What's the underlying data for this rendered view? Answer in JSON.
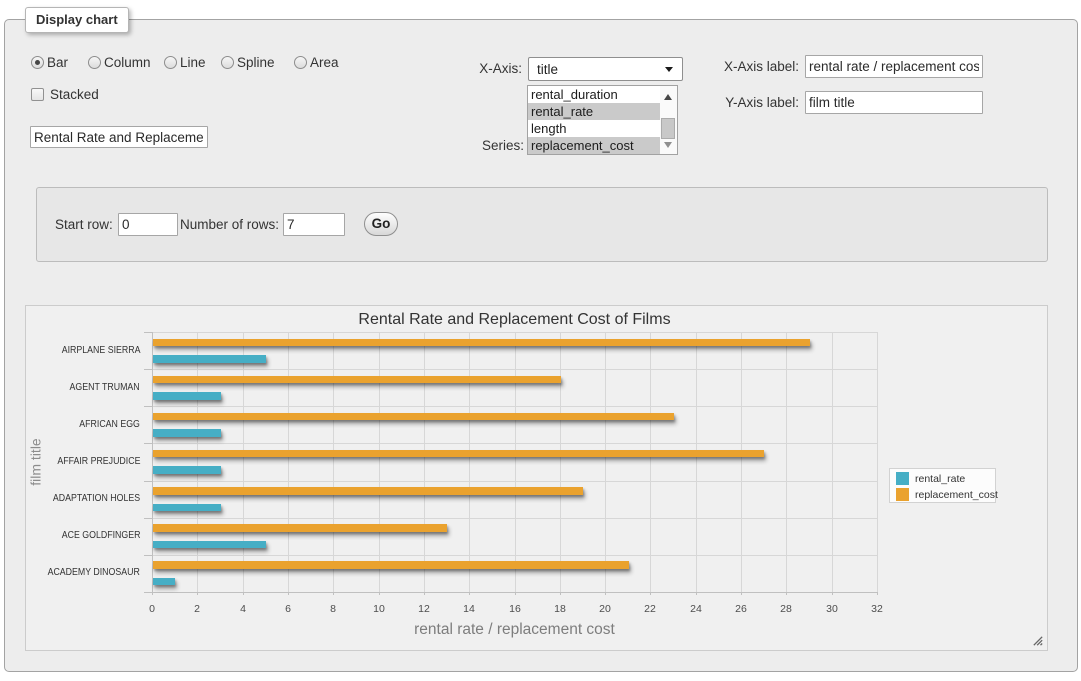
{
  "form": {
    "legend": "Display chart",
    "chart_types": [
      {
        "label": "Bar",
        "selected": true
      },
      {
        "label": "Column",
        "selected": false
      },
      {
        "label": "Line",
        "selected": false
      },
      {
        "label": "Spline",
        "selected": false
      },
      {
        "label": "Area",
        "selected": false
      }
    ],
    "stacked_label": "Stacked",
    "stacked_checked": false,
    "chart_title_value": "Rental Rate and Replacement Cost of Films",
    "x_axis_label_text": "X-Axis:",
    "x_axis_select_value": "title",
    "series_label_text": "Series:",
    "series_options": [
      {
        "label": "rental_duration",
        "selected": false
      },
      {
        "label": "rental_rate",
        "selected": true
      },
      {
        "label": "length",
        "selected": false
      },
      {
        "label": "replacement_cost",
        "selected": true
      }
    ],
    "x_axis_label_field": {
      "label": "X-Axis label:",
      "value": "rental rate / replacement cost"
    },
    "y_axis_label_field": {
      "label": "Y-Axis label:",
      "value": "film title"
    }
  },
  "rows_panel": {
    "start_row_label": "Start row:",
    "start_row_value": "0",
    "num_rows_label": "Number of rows:",
    "num_rows_value": "7",
    "go_label": "Go"
  },
  "chart_data": {
    "type": "bar",
    "title": "Rental Rate and Replacement Cost of Films",
    "categories": [
      "AIRPLANE SIERRA",
      "AGENT TRUMAN",
      "AFRICAN EGG",
      "AFFAIR PREJUDICE",
      "ADAPTATION HOLES",
      "ACE GOLDFINGER",
      "ACADEMY DINOSAUR"
    ],
    "series": [
      {
        "name": "rental_rate",
        "color": "#46aec5",
        "values": [
          4.99,
          2.99,
          2.99,
          2.99,
          2.99,
          4.99,
          0.99
        ]
      },
      {
        "name": "replacement_cost",
        "color": "#eaa22e",
        "values": [
          28.99,
          17.99,
          22.99,
          26.99,
          18.99,
          12.99,
          20.99
        ]
      }
    ],
    "xlabel": "rental rate / replacement cost",
    "ylabel": "film title",
    "xlim": [
      0,
      32
    ],
    "x_tick_step": 2,
    "grid": true,
    "legend_position": "right"
  }
}
